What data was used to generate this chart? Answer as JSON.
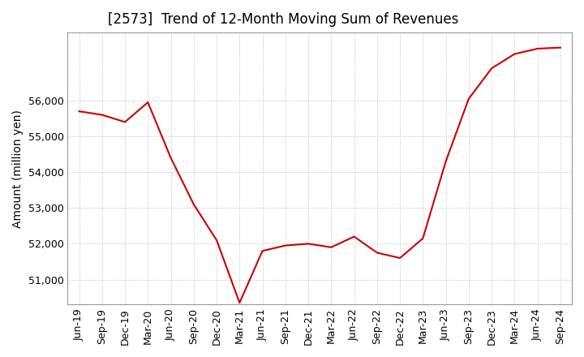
{
  "title": "[2573]  Trend of 12-Month Moving Sum of Revenues",
  "ylabel": "Amount (million yen)",
  "line_color": "#cc0000",
  "background_color": "#ffffff",
  "plot_bg_color": "#ffffff",
  "grid_color": "#bbbbbb",
  "labels": [
    "Jun-19",
    "Sep-19",
    "Dec-19",
    "Mar-20",
    "Jun-20",
    "Sep-20",
    "Dec-20",
    "Mar-21",
    "Jun-21",
    "Sep-21",
    "Dec-21",
    "Mar-22",
    "Jun-22",
    "Sep-22",
    "Dec-22",
    "Mar-23",
    "Jun-23",
    "Sep-23",
    "Dec-23",
    "Mar-24",
    "Jun-24",
    "Sep-24"
  ],
  "values": [
    55700,
    55600,
    55400,
    55950,
    54400,
    53100,
    52100,
    50350,
    51800,
    51950,
    52000,
    51900,
    52200,
    51750,
    51600,
    52150,
    54300,
    56050,
    56900,
    57300,
    57450,
    57480
  ],
  "ylim": [
    50300,
    57900
  ],
  "yticks": [
    51000,
    52000,
    53000,
    54000,
    55000,
    56000
  ],
  "title_fontsize": 12,
  "axis_fontsize": 10,
  "tick_fontsize": 9
}
